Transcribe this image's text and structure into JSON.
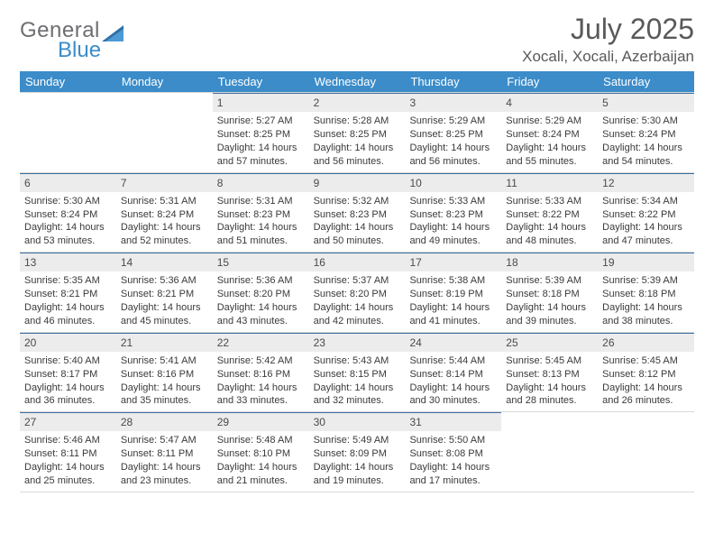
{
  "logo": {
    "text1": "General",
    "text2": "Blue",
    "text_color": "#6d6e71",
    "accent_color": "#3b8cc9"
  },
  "title": "July 2025",
  "location": "Xocali, Xocali, Azerbaijan",
  "header_bar_color": "#3b8cc9",
  "daynum_bg": "#ececec",
  "daynum_border": "#3b6fa0",
  "weekdays": [
    "Sunday",
    "Monday",
    "Tuesday",
    "Wednesday",
    "Thursday",
    "Friday",
    "Saturday"
  ],
  "weeks": [
    [
      null,
      null,
      {
        "n": "1",
        "sr": "5:27 AM",
        "ss": "8:25 PM",
        "dl": "14 hours and 57 minutes."
      },
      {
        "n": "2",
        "sr": "5:28 AM",
        "ss": "8:25 PM",
        "dl": "14 hours and 56 minutes."
      },
      {
        "n": "3",
        "sr": "5:29 AM",
        "ss": "8:25 PM",
        "dl": "14 hours and 56 minutes."
      },
      {
        "n": "4",
        "sr": "5:29 AM",
        "ss": "8:24 PM",
        "dl": "14 hours and 55 minutes."
      },
      {
        "n": "5",
        "sr": "5:30 AM",
        "ss": "8:24 PM",
        "dl": "14 hours and 54 minutes."
      }
    ],
    [
      {
        "n": "6",
        "sr": "5:30 AM",
        "ss": "8:24 PM",
        "dl": "14 hours and 53 minutes."
      },
      {
        "n": "7",
        "sr": "5:31 AM",
        "ss": "8:24 PM",
        "dl": "14 hours and 52 minutes."
      },
      {
        "n": "8",
        "sr": "5:31 AM",
        "ss": "8:23 PM",
        "dl": "14 hours and 51 minutes."
      },
      {
        "n": "9",
        "sr": "5:32 AM",
        "ss": "8:23 PM",
        "dl": "14 hours and 50 minutes."
      },
      {
        "n": "10",
        "sr": "5:33 AM",
        "ss": "8:23 PM",
        "dl": "14 hours and 49 minutes."
      },
      {
        "n": "11",
        "sr": "5:33 AM",
        "ss": "8:22 PM",
        "dl": "14 hours and 48 minutes."
      },
      {
        "n": "12",
        "sr": "5:34 AM",
        "ss": "8:22 PM",
        "dl": "14 hours and 47 minutes."
      }
    ],
    [
      {
        "n": "13",
        "sr": "5:35 AM",
        "ss": "8:21 PM",
        "dl": "14 hours and 46 minutes."
      },
      {
        "n": "14",
        "sr": "5:36 AM",
        "ss": "8:21 PM",
        "dl": "14 hours and 45 minutes."
      },
      {
        "n": "15",
        "sr": "5:36 AM",
        "ss": "8:20 PM",
        "dl": "14 hours and 43 minutes."
      },
      {
        "n": "16",
        "sr": "5:37 AM",
        "ss": "8:20 PM",
        "dl": "14 hours and 42 minutes."
      },
      {
        "n": "17",
        "sr": "5:38 AM",
        "ss": "8:19 PM",
        "dl": "14 hours and 41 minutes."
      },
      {
        "n": "18",
        "sr": "5:39 AM",
        "ss": "8:18 PM",
        "dl": "14 hours and 39 minutes."
      },
      {
        "n": "19",
        "sr": "5:39 AM",
        "ss": "8:18 PM",
        "dl": "14 hours and 38 minutes."
      }
    ],
    [
      {
        "n": "20",
        "sr": "5:40 AM",
        "ss": "8:17 PM",
        "dl": "14 hours and 36 minutes."
      },
      {
        "n": "21",
        "sr": "5:41 AM",
        "ss": "8:16 PM",
        "dl": "14 hours and 35 minutes."
      },
      {
        "n": "22",
        "sr": "5:42 AM",
        "ss": "8:16 PM",
        "dl": "14 hours and 33 minutes."
      },
      {
        "n": "23",
        "sr": "5:43 AM",
        "ss": "8:15 PM",
        "dl": "14 hours and 32 minutes."
      },
      {
        "n": "24",
        "sr": "5:44 AM",
        "ss": "8:14 PM",
        "dl": "14 hours and 30 minutes."
      },
      {
        "n": "25",
        "sr": "5:45 AM",
        "ss": "8:13 PM",
        "dl": "14 hours and 28 minutes."
      },
      {
        "n": "26",
        "sr": "5:45 AM",
        "ss": "8:12 PM",
        "dl": "14 hours and 26 minutes."
      }
    ],
    [
      {
        "n": "27",
        "sr": "5:46 AM",
        "ss": "8:11 PM",
        "dl": "14 hours and 25 minutes."
      },
      {
        "n": "28",
        "sr": "5:47 AM",
        "ss": "8:11 PM",
        "dl": "14 hours and 23 minutes."
      },
      {
        "n": "29",
        "sr": "5:48 AM",
        "ss": "8:10 PM",
        "dl": "14 hours and 21 minutes."
      },
      {
        "n": "30",
        "sr": "5:49 AM",
        "ss": "8:09 PM",
        "dl": "14 hours and 19 minutes."
      },
      {
        "n": "31",
        "sr": "5:50 AM",
        "ss": "8:08 PM",
        "dl": "14 hours and 17 minutes."
      },
      null,
      null
    ]
  ],
  "labels": {
    "sunrise": "Sunrise:",
    "sunset": "Sunset:",
    "daylight": "Daylight:"
  }
}
